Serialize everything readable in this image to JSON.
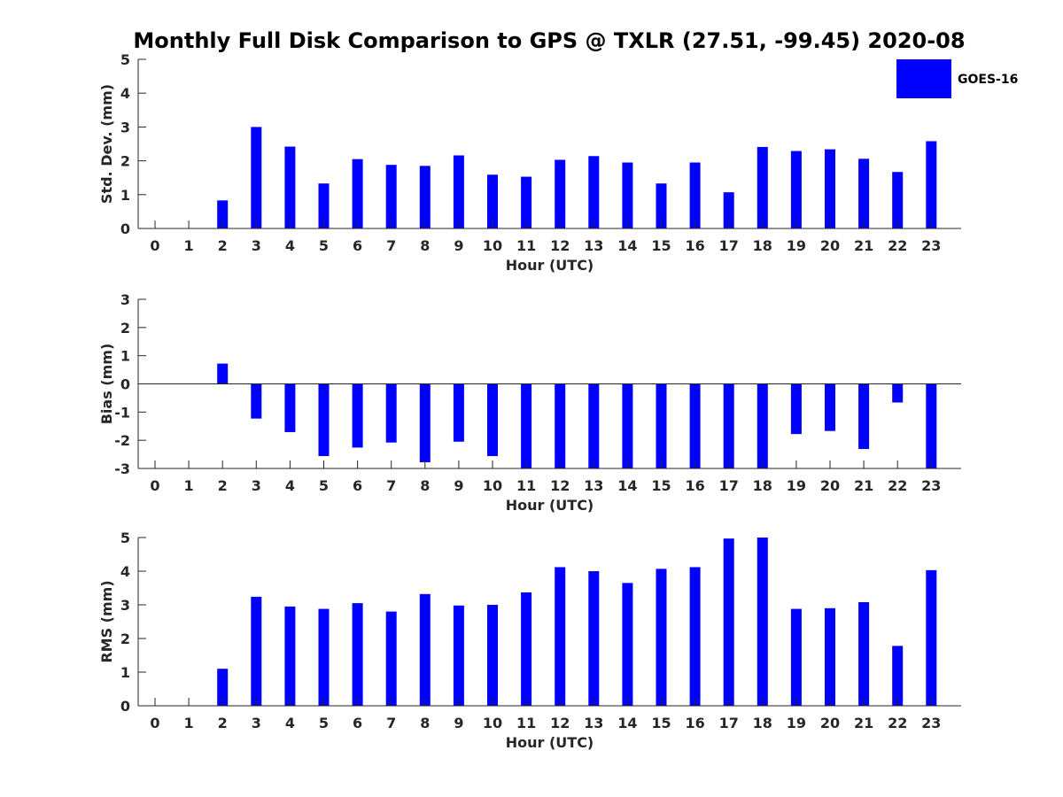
{
  "title": "Monthly Full Disk Comparison to GPS @ TXLR (27.51, -99.45) 2020-08",
  "legend": {
    "label": "GOES-16",
    "color": "#0000ff"
  },
  "chart_data": [
    {
      "type": "bar",
      "series_name": "GOES-16",
      "xlabel": "Hour (UTC)",
      "ylabel": "Std. Dev. (mm)",
      "ylim": [
        0,
        5
      ],
      "yticks": [
        0,
        1,
        2,
        3,
        4,
        5
      ],
      "categories": [
        "0",
        "1",
        "2",
        "3",
        "4",
        "5",
        "6",
        "7",
        "8",
        "9",
        "10",
        "11",
        "12",
        "13",
        "14",
        "15",
        "16",
        "17",
        "18",
        "19",
        "20",
        "21",
        "22",
        "23"
      ],
      "values": [
        null,
        null,
        0.83,
        3.0,
        2.42,
        1.33,
        2.05,
        1.88,
        1.85,
        2.16,
        1.59,
        1.53,
        2.03,
        2.14,
        1.95,
        1.33,
        1.95,
        1.07,
        2.41,
        2.29,
        2.34,
        2.06,
        1.67,
        2.58
      ],
      "grid": false,
      "legend": "top-right"
    },
    {
      "type": "bar",
      "series_name": "GOES-16",
      "xlabel": "Hour (UTC)",
      "ylabel": "Bias (mm)",
      "ylim": [
        -3,
        3
      ],
      "yticks": [
        -3,
        -2,
        -1,
        0,
        1,
        2,
        3
      ],
      "categories": [
        "0",
        "1",
        "2",
        "3",
        "4",
        "5",
        "6",
        "7",
        "8",
        "9",
        "10",
        "11",
        "12",
        "13",
        "14",
        "15",
        "16",
        "17",
        "18",
        "19",
        "20",
        "21",
        "22",
        "23"
      ],
      "values": [
        null,
        null,
        0.72,
        -1.23,
        -1.71,
        -2.56,
        -2.26,
        -2.08,
        -2.78,
        -2.05,
        -2.56,
        -3.0,
        -3.0,
        -3.0,
        -3.0,
        -3.0,
        -3.0,
        -3.0,
        -3.0,
        -1.78,
        -1.67,
        -2.31,
        -0.66,
        -3.0
      ],
      "grid": false,
      "zero_line": true
    },
    {
      "type": "bar",
      "series_name": "GOES-16",
      "xlabel": "Hour (UTC)",
      "ylabel": "RMS (mm)",
      "ylim": [
        0,
        5
      ],
      "yticks": [
        0,
        1,
        2,
        3,
        4,
        5
      ],
      "categories": [
        "0",
        "1",
        "2",
        "3",
        "4",
        "5",
        "6",
        "7",
        "8",
        "9",
        "10",
        "11",
        "12",
        "13",
        "14",
        "15",
        "16",
        "17",
        "18",
        "19",
        "20",
        "21",
        "22",
        "23"
      ],
      "values": [
        null,
        null,
        1.1,
        3.24,
        2.95,
        2.88,
        3.05,
        2.8,
        3.32,
        2.98,
        3.0,
        3.37,
        4.12,
        4.0,
        3.65,
        4.07,
        4.12,
        4.97,
        5.0,
        2.88,
        2.9,
        3.08,
        1.78,
        4.03
      ],
      "grid": false
    }
  ]
}
